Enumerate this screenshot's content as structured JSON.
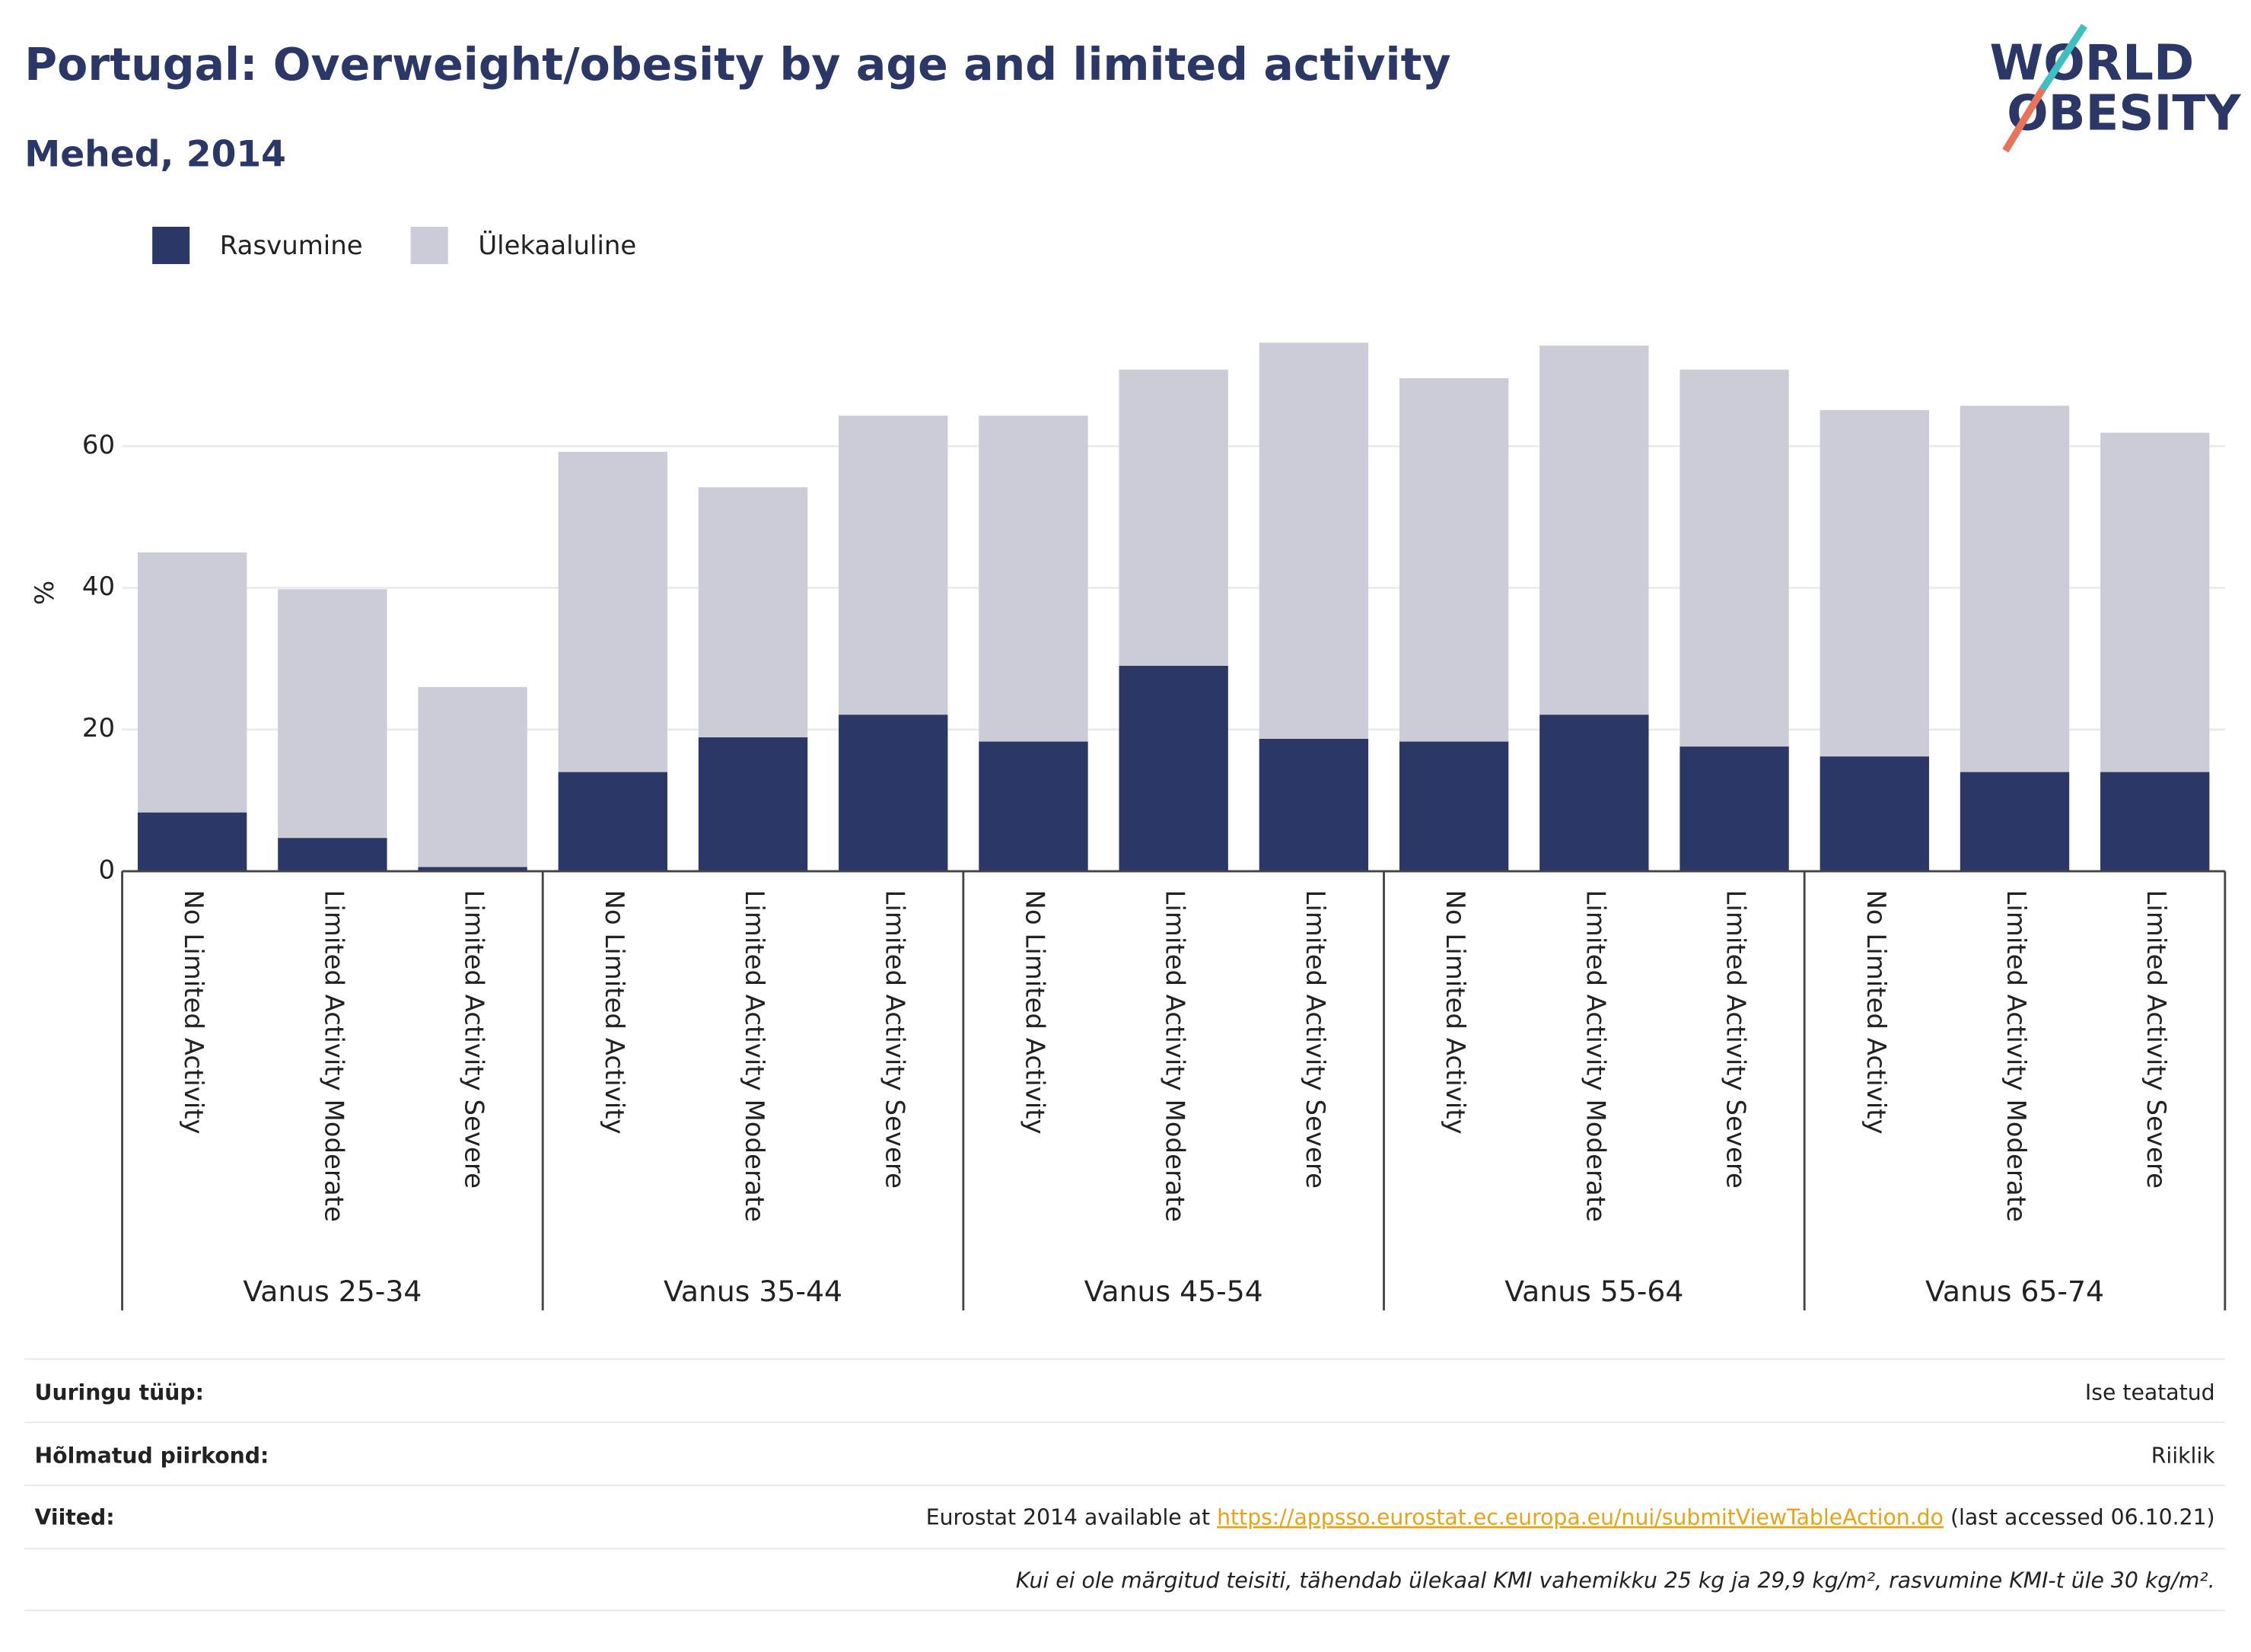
{
  "chart_data": {
    "type": "stacked_bar",
    "title": "Portugal: Overweight/obesity by age and limited activity",
    "subtitle": "Mehed, 2014",
    "y_label": "%",
    "logo": [
      "WORLD",
      "OBESITY"
    ],
    "categories": [
      "No Limited Activity",
      "Limited Activity Moderate",
      "Limited Activity Severe",
      "No Limited Activity",
      "Limited Activity Moderate",
      "Limited Activity Severe",
      "No Limited Activity",
      "Limited Activity Moderate",
      "Limited Activity Severe",
      "No Limited Activity",
      "Limited Activity Moderate",
      "Limited Activity Severe",
      "No Limited Activity",
      "Limited Activity Moderate",
      "Limited Activity Severe"
    ],
    "groups": [
      "Vanus 25-34",
      "Vanus 35-44",
      "Vanus 45-54",
      "Vanus 55-64",
      "Vanus 65-74"
    ],
    "series": [
      {
        "name": "Rasvumine",
        "color": "#2b3766",
        "values": [
          8.3,
          4.7,
          0.6,
          14.0,
          18.9,
          22.1,
          18.3,
          29.0,
          18.7,
          18.3,
          22.1,
          17.6,
          16.2,
          14.0,
          14.0
        ]
      },
      {
        "name": "Ülekaaluline",
        "color": "#cbccd8",
        "values": [
          36.7,
          35.1,
          25.4,
          45.2,
          35.3,
          42.2,
          46.0,
          41.8,
          55.9,
          51.3,
          52.1,
          53.2,
          48.9,
          51.7,
          47.9
        ]
      }
    ],
    "ylim": [
      0,
      78
    ],
    "yticks": [
      0,
      20,
      40,
      60
    ],
    "grid": true,
    "legend": "top-left"
  },
  "footer": {
    "rows": [
      {
        "label": "Uuringu tüüp:",
        "value": "Ise teatatud"
      },
      {
        "label": "Hõlmatud piirkond:",
        "value": "Riiklik"
      }
    ],
    "references": {
      "label": "Viited:",
      "before": "Eurostat 2014 available at",
      "link": "https://appsso.eurostat.ec.europa.eu/nui/submitViewTableAction.do",
      "after": "(last accessed 06.10.21)"
    },
    "note": "Kui ei ole märgitud teisiti, tähendab ülekaal KMI vahemikku 25 kg ja 29,9 kg/m², rasvumine KMI-t üle 30 kg/m²."
  }
}
